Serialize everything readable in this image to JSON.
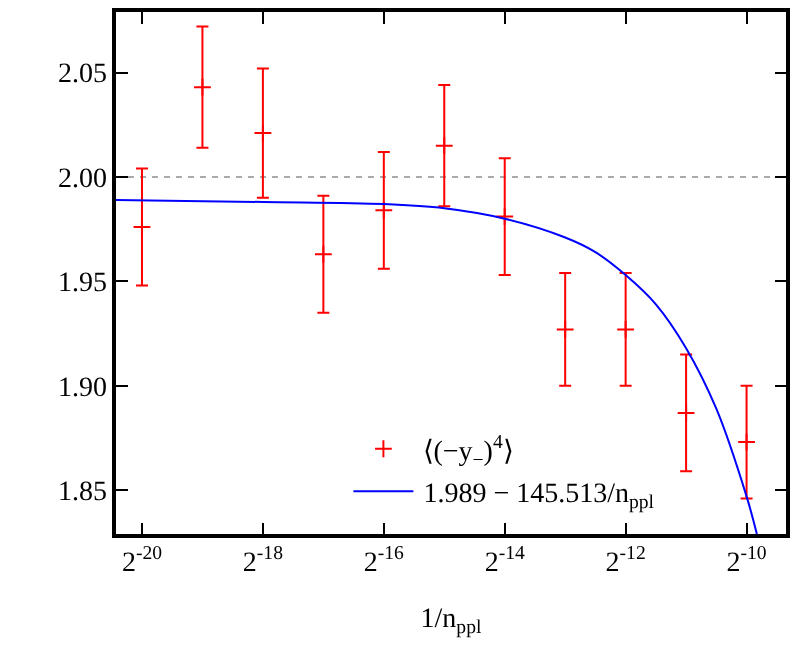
{
  "chart_data": {
    "type": "scatter",
    "xlabel": "1/n$_{ppl}$",
    "log": "x",
    "xlim": [
      7.08e-07,
      0.001535
    ],
    "xticks": [
      {
        "value": 9.5367431640625e-07,
        "label": "2$^{-20}$"
      },
      {
        "value": 3.814697265625e-06,
        "label": "2$^{-18}$"
      },
      {
        "value": 1.52587890625e-05,
        "label": "2$^{-16}$"
      },
      {
        "value": 6.103515625e-05,
        "label": "2$^{-14}$"
      },
      {
        "value": 0.000244140625,
        "label": "2$^{-12}$"
      },
      {
        "value": 0.0009765625,
        "label": "2$^{-10}$"
      }
    ],
    "ylim": [
      1.829,
      2.079
    ],
    "yticks": [
      {
        "value": 1.85,
        "label": "1.85"
      },
      {
        "value": 1.9,
        "label": "1.90"
      },
      {
        "value": 1.95,
        "label": "1.95"
      },
      {
        "value": 2.0,
        "label": "2.00"
      },
      {
        "value": 2.05,
        "label": "2.05"
      }
    ],
    "grid": false,
    "legend": "bottom right",
    "ref_lines": [
      {
        "axis": "y",
        "value": 2.0,
        "color": "#aaaaaa",
        "line_style": "dotted"
      }
    ],
    "series": [
      {
        "name": "⟨(−y$_{−}$)$^{4}$⟩",
        "color": "#ff0000",
        "marker": "cross",
        "x": [
          9.5367431640625e-07,
          1.9073486328125e-06,
          3.814697265625e-06,
          7.62939453125e-06,
          1.52587890625e-05,
          3.0517578125e-05,
          6.103515625e-05,
          0.0001220703125,
          0.000244140625,
          0.00048828125,
          0.0009765625
        ],
        "values": [
          1.976,
          2.043,
          2.021,
          1.963,
          1.984,
          2.015,
          1.981,
          1.927,
          1.927,
          1.887,
          1.873
        ],
        "errors": [
          0.028,
          0.029,
          0.031,
          0.028,
          0.028,
          0.029,
          0.028,
          0.027,
          0.027,
          0.028,
          0.027
        ]
      },
      {
        "name": "1.989 − 145.513/n$_{ppl}$",
        "type": "line",
        "color": "#0000ff",
        "line_style": "solid",
        "x": [
          7.08e-07,
          3.814697265625e-06,
          1.52587890625e-05,
          3.0517578125e-05,
          6.103515625e-05,
          0.0001220703125,
          0.0001726,
          0.000244140625,
          0.0003453,
          0.00048828125,
          0.0006905,
          0.0009765625,
          0.001099
        ],
        "values": [
          1.989,
          1.988,
          1.987,
          1.985,
          1.98,
          1.971,
          1.964,
          1.953,
          1.939,
          1.918,
          1.889,
          1.847,
          1.829
        ]
      }
    ]
  }
}
